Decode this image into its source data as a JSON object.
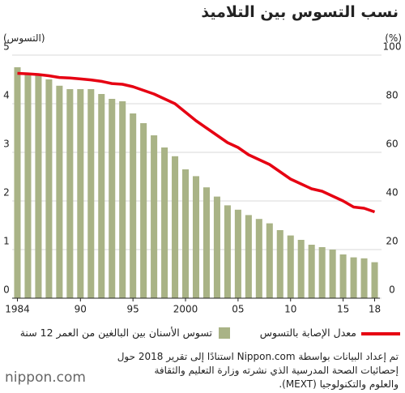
{
  "chart_data": {
    "type": "bar",
    "title": "نسب التسوس بين التلاميذ",
    "y_label": "(التسوس)",
    "y2_label": "(%)",
    "x": [
      1984,
      1985,
      1986,
      1987,
      1988,
      1989,
      1990,
      1991,
      1992,
      1993,
      1994,
      1995,
      1996,
      1997,
      1998,
      1999,
      2000,
      2001,
      2002,
      2003,
      2004,
      2005,
      2006,
      2007,
      2008,
      2009,
      2010,
      2011,
      2012,
      2013,
      2014,
      2015,
      2016,
      2017,
      2018
    ],
    "series": [
      {
        "name": "تسوس الأسنان بين البالغين من العمر 12 سنة",
        "type": "bar",
        "color": "#a9b386",
        "values": [
          4.75,
          4.63,
          4.6,
          4.5,
          4.37,
          4.3,
          4.3,
          4.3,
          4.2,
          4.1,
          4.05,
          3.8,
          3.6,
          3.35,
          3.1,
          2.92,
          2.65,
          2.51,
          2.28,
          2.09,
          1.91,
          1.82,
          1.71,
          1.63,
          1.54,
          1.4,
          1.29,
          1.2,
          1.1,
          1.05,
          1.0,
          0.9,
          0.84,
          0.82,
          0.74
        ]
      },
      {
        "name": "معدل الإصابة بالتسوس",
        "type": "line",
        "axis": "y2",
        "color": "#e60012",
        "values": [
          92.5,
          92.3,
          92,
          91.5,
          90.8,
          90.6,
          90.2,
          89.8,
          89.2,
          88.3,
          88,
          87,
          85.5,
          84,
          82,
          80,
          76.5,
          73,
          70,
          67,
          64,
          62,
          59,
          57,
          55,
          52,
          49,
          47,
          45,
          44,
          42,
          40,
          37.5,
          37,
          35.5
        ]
      }
    ],
    "xlim": [
      1983.5,
      2018.5
    ],
    "xticks": [
      1984,
      {
        "value": 1990,
        "label": "90"
      },
      {
        "value": 1995,
        "label": "95"
      },
      2000,
      {
        "value": 2005,
        "label": "05"
      },
      {
        "value": 2010,
        "label": "10"
      },
      {
        "value": 2015,
        "label": "15"
      },
      {
        "value": 2018,
        "label": "18"
      }
    ],
    "ylim": [
      0,
      5
    ],
    "yticks": [
      0,
      1,
      2,
      3,
      4,
      5
    ],
    "y2lim": [
      0,
      100
    ],
    "y2ticks": [
      0,
      20,
      40,
      60,
      80,
      100
    ],
    "grid": true
  },
  "footnote": [
    "تم إعداد البيانات بواسطة Nippon.com استنادًا إلى تقرير 2018 حول",
    "إحصائيات الصحة المدرسية الذي نشرته وزارة التعليم والثقافة",
    "والعلوم والتكنولوجيا (MEXT)."
  ],
  "brand": "nippon.com"
}
